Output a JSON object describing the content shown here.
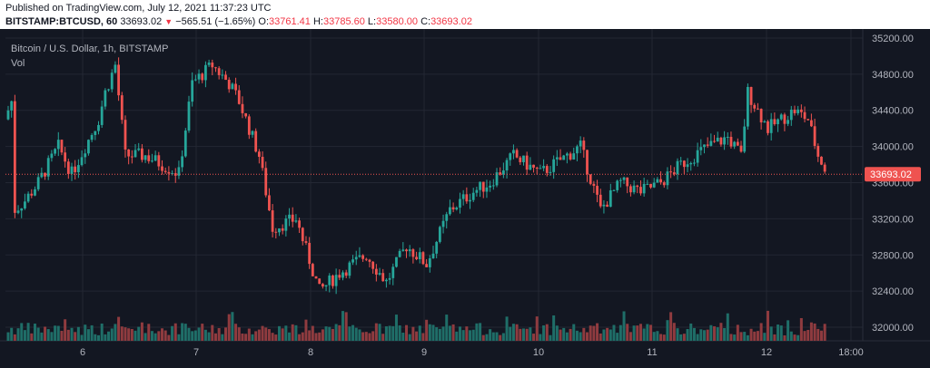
{
  "header": {
    "published": "Published on TradingView.com, July 12, 2021 11:37:23 UTC",
    "symbol": "BITSTAMP:BTCUSD, 60",
    "last": "33693.02",
    "change": "−565.51 (−1.65%)",
    "open_label": "O:",
    "open": "33761.41",
    "high_label": "H:",
    "high": "33785.60",
    "low_label": "L:",
    "low": "33580.00",
    "close_label": "C:",
    "close": "33693.02"
  },
  "chart_data": {
    "type": "candlestick",
    "title": "Bitcoin / U.S. Dollar, 1h, BITSTAMP",
    "volume_label": "Vol",
    "price_axis": {
      "ticks": [
        "35200.00",
        "34800.00",
        "34400.00",
        "34000.00",
        "33600.00",
        "33200.00",
        "32800.00",
        "32400.00",
        "32000.00"
      ],
      "range": [
        31850,
        35300
      ]
    },
    "time_axis": {
      "ticks": [
        "6",
        "7",
        "8",
        "9",
        "10",
        "11",
        "12",
        "18:00"
      ]
    },
    "last_price": 33693.02,
    "last_price_label": "33693.02",
    "colors": {
      "up": "#26a69a",
      "down": "#ef5350",
      "volume_up": "#1f6e68",
      "volume_down": "#8f3b3f",
      "background": "#131722",
      "grid": "#232733",
      "axis_text": "#b2b5be"
    },
    "anchors": [
      [
        0,
        34300
      ],
      [
        2,
        34500
      ],
      [
        3,
        33300
      ],
      [
        6,
        33400
      ],
      [
        10,
        33600
      ],
      [
        16,
        34000
      ],
      [
        20,
        33700
      ],
      [
        28,
        34300
      ],
      [
        30,
        34600
      ],
      [
        33,
        34900
      ],
      [
        36,
        33900
      ],
      [
        42,
        33900
      ],
      [
        52,
        33700
      ],
      [
        56,
        34700
      ],
      [
        62,
        34900
      ],
      [
        67,
        34700
      ],
      [
        70,
        34500
      ],
      [
        76,
        33900
      ],
      [
        80,
        33100
      ],
      [
        87,
        33200
      ],
      [
        94,
        32400
      ],
      [
        100,
        32600
      ],
      [
        108,
        32800
      ],
      [
        114,
        32500
      ],
      [
        120,
        32900
      ],
      [
        126,
        32700
      ],
      [
        133,
        33300
      ],
      [
        140,
        33500
      ],
      [
        145,
        33600
      ],
      [
        152,
        33900
      ],
      [
        160,
        33700
      ],
      [
        172,
        34000
      ],
      [
        178,
        33300
      ],
      [
        184,
        33600
      ],
      [
        190,
        33500
      ],
      [
        196,
        33600
      ],
      [
        202,
        33800
      ],
      [
        210,
        34000
      ],
      [
        216,
        34100
      ],
      [
        220,
        33900
      ],
      [
        222,
        34600
      ],
      [
        228,
        34200
      ],
      [
        236,
        34400
      ],
      [
        240,
        34300
      ],
      [
        243,
        33900
      ],
      [
        246,
        33690
      ]
    ],
    "candle_count": 247,
    "days": [
      {
        "label": "6",
        "index": 17
      },
      {
        "label": "7",
        "index": 41
      },
      {
        "label": "8",
        "index": 65
      },
      {
        "label": "9",
        "index": 89
      },
      {
        "label": "10",
        "index": 113
      },
      {
        "label": "11",
        "index": 137
      },
      {
        "label": "12",
        "index": 161
      },
      {
        "label": "18:00",
        "index": 179
      }
    ]
  }
}
